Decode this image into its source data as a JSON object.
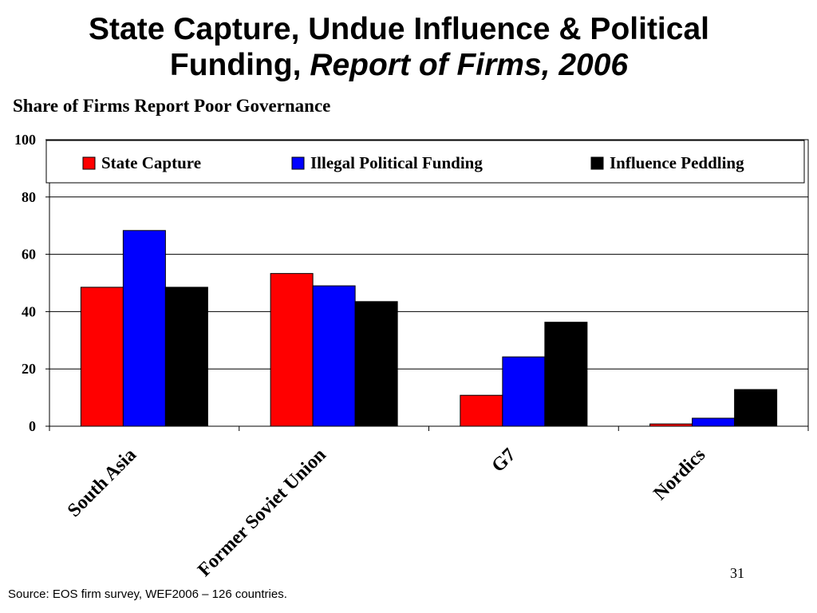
{
  "slide": {
    "title_line1": "State Capture, Undue Influence & Political",
    "title_line2_plain": "Funding, ",
    "title_line2_italic": "Report of Firms, 2006",
    "source": "Source:  EOS firm survey, WEF2006 – 126 countries.",
    "page_number": "31"
  },
  "chart_data": {
    "type": "bar",
    "title": "Share of Firms Report Poor Governance",
    "xlabel": "",
    "ylabel": "",
    "categories": [
      "South Asia",
      "Former Soviet Union",
      "G7",
      "Nordics"
    ],
    "series": [
      {
        "name": "State Capture",
        "color": "#ff0000",
        "values": [
          48.5,
          53.3,
          10.8,
          0.8
        ]
      },
      {
        "name": "Illegal Political Funding",
        "color": "#0000ff",
        "values": [
          68.3,
          49,
          24.2,
          2.8
        ]
      },
      {
        "name": "Influence Peddling",
        "color": "#000000",
        "values": [
          48.5,
          43.5,
          36.3,
          12.8
        ]
      }
    ],
    "ylim": [
      0,
      100
    ],
    "yticks": [
      0,
      20,
      40,
      60,
      80,
      100
    ],
    "grid": true,
    "legend": "top"
  }
}
